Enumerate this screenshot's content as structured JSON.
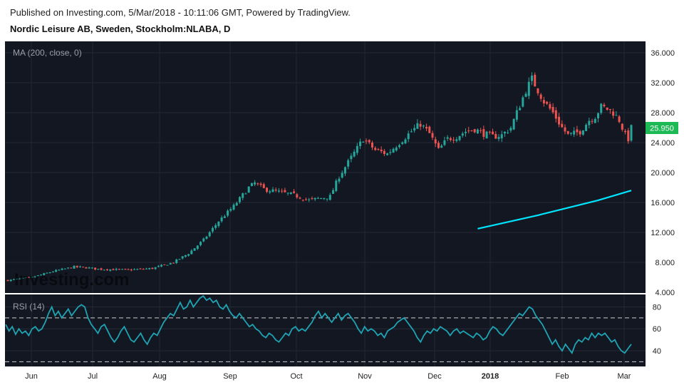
{
  "header": {
    "published": "Published on Investing.com, 5/Mar/2018 - 10:11:06 GMT, Powered by TradingView.",
    "title": "Nordic Leisure AB, Sweden, Stockholm:NLABA, D"
  },
  "watermark": "Investing.com",
  "colors": {
    "background": "#131722",
    "up": "#26a69a",
    "down": "#ef5350",
    "ma": "#00e5ff",
    "rsi": "#1fa3b3",
    "price_tag": "#1db954"
  },
  "chart_data": [
    {
      "type": "candlestick",
      "indicator_label": "MA (200, close, 0)",
      "ylim": [
        4,
        36
      ],
      "y_ticks": [
        "4.000",
        "8.000",
        "12.000",
        "16.000",
        "20.000",
        "24.000",
        "28.000",
        "32.000",
        "36.000"
      ],
      "last_price": "25.950",
      "x_ticks": [
        "Jun",
        "Jul",
        "Aug",
        "Sep",
        "Oct",
        "Nov",
        "Dec",
        "2018",
        "Feb",
        "Mar"
      ],
      "close_anchors": [
        [
          0,
          5.6
        ],
        [
          8,
          6.0
        ],
        [
          15,
          6.8
        ],
        [
          22,
          7.4
        ],
        [
          26,
          7.3
        ],
        [
          30,
          7.1
        ],
        [
          40,
          7.0
        ],
        [
          48,
          7.2
        ],
        [
          55,
          8.0
        ],
        [
          60,
          9.2
        ],
        [
          65,
          11.0
        ],
        [
          70,
          13.5
        ],
        [
          75,
          15.5
        ],
        [
          80,
          18.0
        ],
        [
          82,
          18.6
        ],
        [
          85,
          17.8
        ],
        [
          95,
          17.0
        ],
        [
          100,
          16.3
        ],
        [
          107,
          16.8
        ],
        [
          110,
          19.5
        ],
        [
          114,
          22.0
        ],
        [
          118,
          24.5
        ],
        [
          122,
          23.0
        ],
        [
          126,
          22.5
        ],
        [
          130,
          24.0
        ],
        [
          134,
          25.5
        ],
        [
          137,
          26.5
        ],
        [
          140,
          25.2
        ],
        [
          143,
          23.0
        ],
        [
          146,
          24.5
        ],
        [
          149,
          24.8
        ],
        [
          152,
          25.5
        ],
        [
          155,
          25.8
        ],
        [
          158,
          25.2
        ],
        [
          161,
          24.8
        ],
        [
          164,
          25.0
        ],
        [
          167,
          26.0
        ],
        [
          170,
          29.0
        ],
        [
          172,
          31.0
        ],
        [
          174,
          32.5
        ],
        [
          176,
          31.0
        ],
        [
          178,
          29.5
        ],
        [
          181,
          28.0
        ],
        [
          184,
          26.0
        ],
        [
          186,
          25.0
        ],
        [
          188,
          25.2
        ],
        [
          190,
          25.5
        ],
        [
          193,
          27.0
        ],
        [
          195,
          27.5
        ],
        [
          197,
          28.8
        ],
        [
          199,
          28.5
        ],
        [
          201,
          28.0
        ],
        [
          203,
          27.0
        ],
        [
          205,
          25.0
        ],
        [
          206,
          24.5
        ],
        [
          207,
          25.95
        ]
      ],
      "ma_200": [
        [
          156,
          12.5
        ],
        [
          176,
          14.3
        ],
        [
          196,
          16.3
        ],
        [
          207,
          17.6
        ]
      ]
    },
    {
      "type": "line",
      "indicator_label": "RSI (14)",
      "ylim": [
        27,
        92
      ],
      "y_ticks": [
        "40",
        "60",
        "80"
      ],
      "levels": [
        30,
        70
      ],
      "values": [
        64,
        58,
        62,
        55,
        60,
        56,
        58,
        54,
        60,
        62,
        58,
        60,
        66,
        74,
        80,
        72,
        76,
        70,
        74,
        78,
        72,
        76,
        80,
        82,
        80,
        70,
        64,
        60,
        56,
        62,
        64,
        58,
        52,
        48,
        52,
        58,
        62,
        56,
        50,
        48,
        52,
        56,
        50,
        46,
        52,
        56,
        54,
        60,
        66,
        70,
        74,
        72,
        78,
        84,
        78,
        80,
        86,
        80,
        84,
        88,
        90,
        86,
        88,
        84,
        86,
        80,
        78,
        82,
        76,
        72,
        70,
        74,
        70,
        66,
        62,
        64,
        60,
        58,
        54,
        52,
        56,
        54,
        50,
        48,
        52,
        56,
        54,
        60,
        62,
        58,
        60,
        58,
        62,
        66,
        72,
        76,
        70,
        74,
        70,
        66,
        70,
        74,
        68,
        72,
        74,
        70,
        66,
        60,
        56,
        62,
        58,
        60,
        58,
        54,
        56,
        52,
        58,
        60,
        62,
        66,
        68,
        70,
        66,
        62,
        58,
        52,
        48,
        54,
        58,
        56,
        60,
        58,
        62,
        60,
        58,
        54,
        58,
        60,
        56,
        58,
        56,
        54,
        52,
        56,
        54,
        50,
        52,
        58,
        62,
        60,
        56,
        54,
        58,
        62,
        66,
        70,
        74,
        72,
        76,
        80,
        78,
        72,
        68,
        64,
        58,
        52,
        46,
        50,
        44,
        40,
        46,
        42,
        38,
        46,
        50,
        48,
        52,
        50,
        56,
        52,
        56,
        54,
        56,
        52,
        48,
        50,
        44,
        40,
        38,
        42,
        46
      ]
    }
  ]
}
